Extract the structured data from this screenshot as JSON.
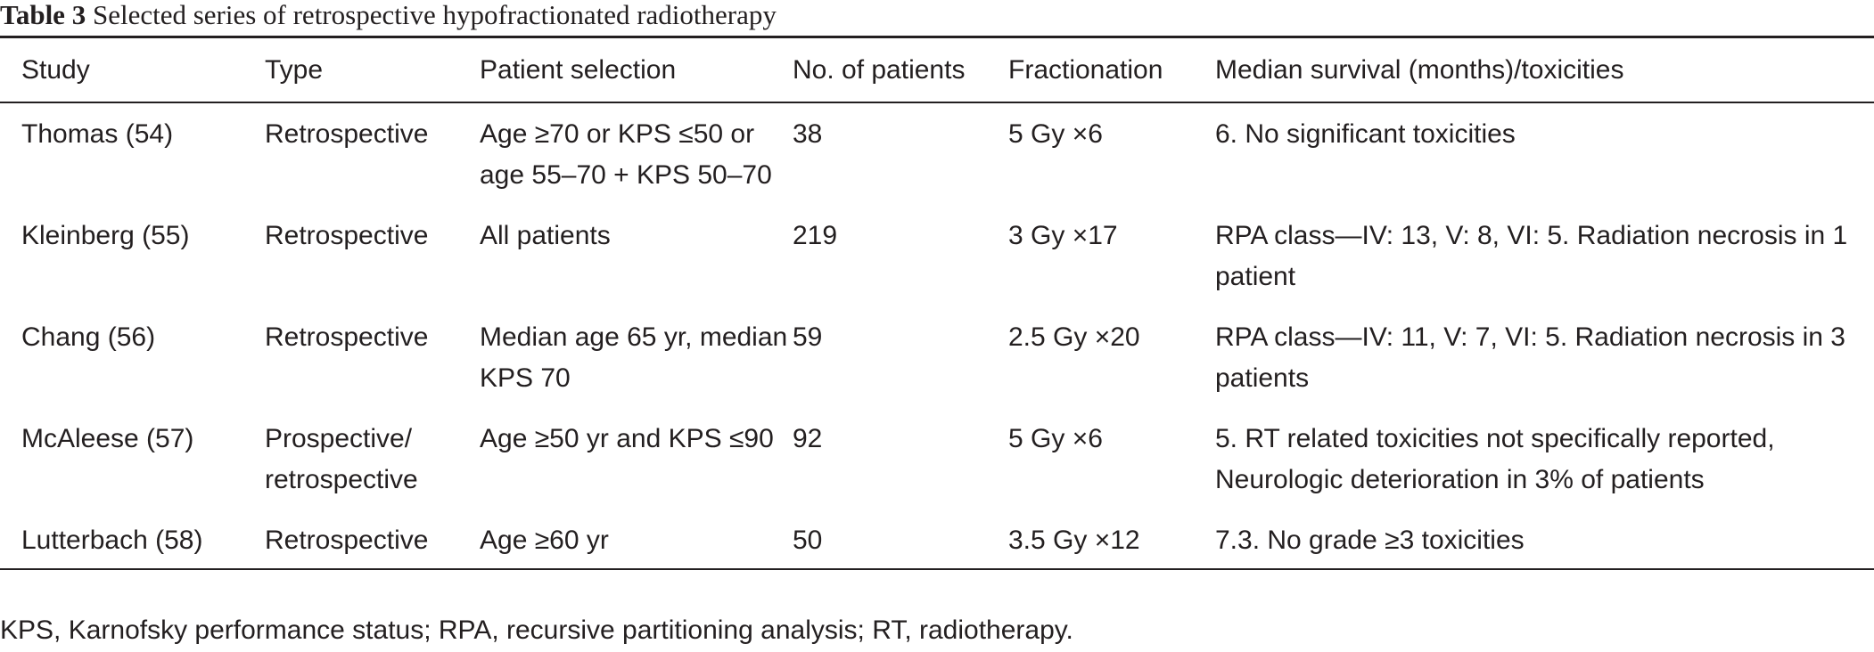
{
  "caption": {
    "label": "Table 3",
    "text": "Selected series of retrospective hypofractionated radiotherapy"
  },
  "table": {
    "headers": [
      "Study",
      "Type",
      "Patient selection",
      "No. of patients",
      "Fractionation",
      "Median survival (months)/toxicities"
    ],
    "rows": [
      {
        "study": "Thomas (54)",
        "type": "Retrospective",
        "patient_selection": "Age ≥70 or KPS ≤50 or age 55–70 + KPS 50–70",
        "no_of_patients": "38",
        "fractionation": "5 Gy ×6",
        "outcome": "6. No significant toxicities"
      },
      {
        "study": "Kleinberg (55)",
        "type": "Retrospective",
        "patient_selection": "All patients",
        "no_of_patients": "219",
        "fractionation": "3 Gy ×17",
        "outcome": "RPA class—IV: 13, V: 8, VI: 5. Radiation necrosis in 1 patient"
      },
      {
        "study": "Chang (56)",
        "type": "Retrospective",
        "patient_selection": "Median age 65 yr, median KPS 70",
        "no_of_patients": "59",
        "fractionation": "2.5 Gy ×20",
        "outcome": "RPA class—IV: 11, V: 7, VI: 5. Radiation necrosis in 3 patients"
      },
      {
        "study": "McAleese (57)",
        "type": "Prospective/ retrospective",
        "patient_selection": "Age ≥50 yr and KPS ≤90",
        "no_of_patients": "92",
        "fractionation": "5 Gy ×6",
        "outcome": "5. RT related toxicities not specifically reported, Neurologic deterioration in 3% of patients"
      },
      {
        "study": "Lutterbach (58)",
        "type": "Retrospective",
        "patient_selection": "Age ≥60 yr",
        "no_of_patients": "50",
        "fractionation": "3.5 Gy ×12",
        "outcome": "7.3. No grade ≥3 toxicities"
      }
    ]
  },
  "footnote": "KPS, Karnofsky performance status; RPA, recursive partitioning analysis; RT, radiotherapy."
}
